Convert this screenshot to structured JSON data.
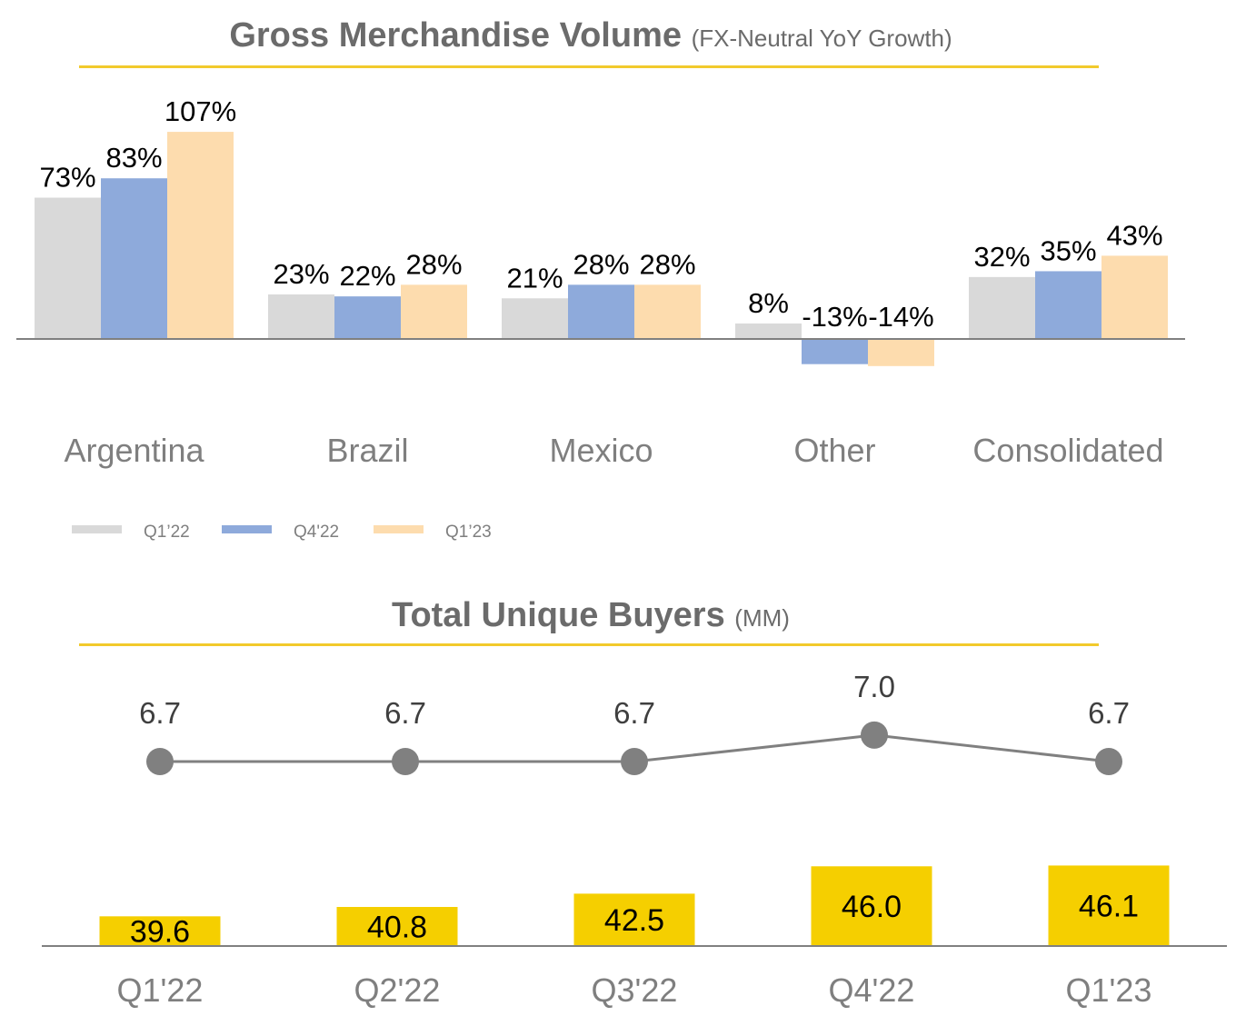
{
  "gmv": {
    "title": "Gross Merchandise Volume",
    "subtitle": "(FX-Neutral YoY Growth)"
  },
  "buyers": {
    "title": "Total Unique Buyers",
    "subtitle": "(MM)"
  },
  "colors": {
    "q1_22": "#d9d9d9",
    "q4_22": "#8eaadb",
    "q1_23": "#fddcae",
    "buyers_bar": "#f5cf00",
    "line": "#808080",
    "axis": "#808080",
    "accent_rule": "#f2ca2c"
  },
  "chart_data": [
    {
      "type": "bar",
      "title": "Gross Merchandise Volume",
      "subtitle": "(FX-Neutral YoY Growth)",
      "categories": [
        "Argentina",
        "Brazil",
        "Mexico",
        "Other",
        "Consolidated"
      ],
      "series": [
        {
          "name": "Q1’22",
          "values": [
            73,
            23,
            21,
            8,
            32
          ],
          "labels": [
            "73%",
            "23%",
            "21%",
            "8%",
            "32%"
          ],
          "color": "#d9d9d9"
        },
        {
          "name": "Q4'22",
          "values": [
            83,
            22,
            28,
            -13,
            35
          ],
          "labels": [
            "83%",
            "22%",
            "28%",
            "-13%",
            "35%"
          ],
          "color": "#8eaadb"
        },
        {
          "name": "Q1’23",
          "values": [
            107,
            28,
            28,
            -14,
            43
          ],
          "labels": [
            "107%",
            "28%",
            "28%",
            "-14%",
            "43%"
          ],
          "color": "#fddcae"
        }
      ],
      "ylim": [
        -20,
        110
      ],
      "grid": false,
      "legend": "bottom-left"
    },
    {
      "type": "bar",
      "title": "Total Unique Buyers",
      "subtitle": "(MM)",
      "categories": [
        "Q1'22",
        "Q2'22",
        "Q3'22",
        "Q4'22",
        "Q1'23"
      ],
      "series": [
        {
          "name": "",
          "kind": "bar",
          "values": [
            39.6,
            40.8,
            42.5,
            46.0,
            46.1
          ],
          "labels": [
            "39.6",
            "40.8",
            "42.5",
            "46.0",
            "46.1"
          ],
          "color": "#f5cf00"
        },
        {
          "name": "",
          "kind": "line",
          "values": [
            6.7,
            6.7,
            6.7,
            7.0,
            6.7
          ],
          "labels": [
            "6.7",
            "6.7",
            "6.7",
            "7.0",
            "6.7"
          ],
          "color": "#808080"
        }
      ],
      "grid": false,
      "legend": "none"
    }
  ]
}
